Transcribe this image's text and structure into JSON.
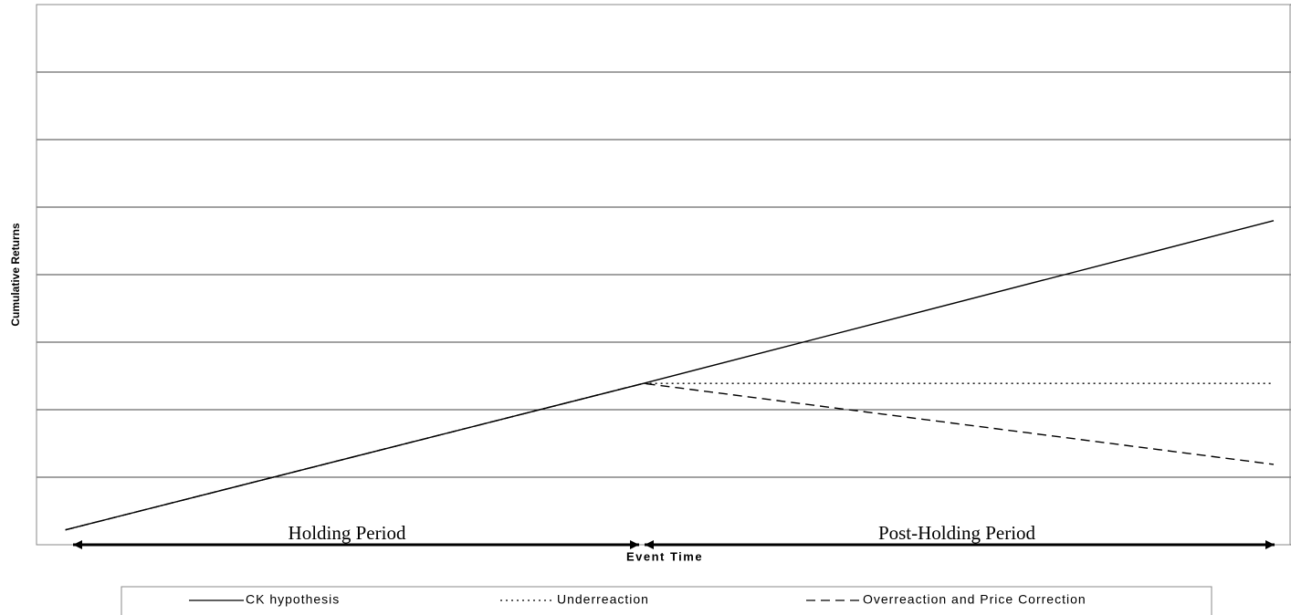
{
  "chart_data": {
    "type": "line",
    "x_label": "Event Time",
    "y_label": "Cumulative Returns",
    "x": [
      0,
      1,
      2.09
    ],
    "xlim": [
      -0.05,
      2.12
    ],
    "ylim": [
      0,
      8
    ],
    "yticks": [
      0,
      1,
      2,
      3,
      4,
      5,
      6,
      7,
      8
    ],
    "grid": true,
    "annotations": [
      "Holding Period",
      "Post-Holding Period"
    ],
    "series": [
      {
        "name": "CK hypothesis",
        "color": "#000000",
        "style": "solid",
        "values": [
          0.22,
          2.39,
          4.8
        ]
      },
      {
        "name": "Underreaction",
        "color": "#000000",
        "style": "dotted",
        "values": [
          0.22,
          2.39,
          2.39
        ]
      },
      {
        "name": "Overreaction and Price Correction",
        "color": "#000000",
        "style": "dashed",
        "values": [
          0.22,
          2.39,
          1.19
        ]
      }
    ],
    "legend": "bottom"
  }
}
